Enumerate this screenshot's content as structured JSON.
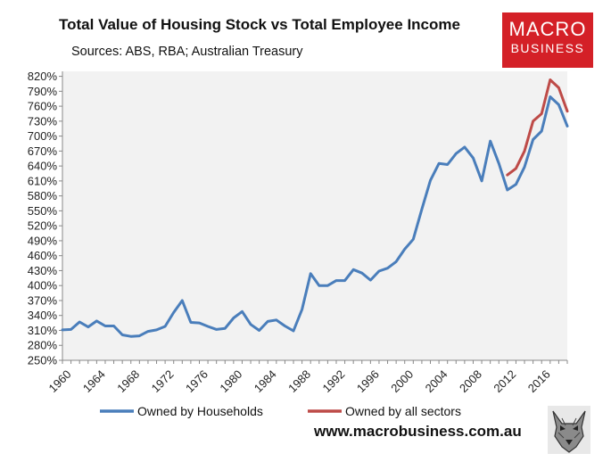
{
  "title": "Total Value of Housing Stock vs Total Employee Income",
  "subtitle": "Sources: ABS, RBA; Australian Treasury",
  "logo": {
    "line1": "MACRO",
    "line2": "BUSINESS",
    "color": "#d42027"
  },
  "website": "www.macrobusiness.com.au",
  "chart_data": {
    "type": "line",
    "title": "Total Value of Housing Stock vs Total Employee Income",
    "subtitle": "Sources: ABS, RBA; Australian Treasury",
    "xlabel": "",
    "ylabel": "",
    "xlim": [
      1960,
      2019
    ],
    "ylim": [
      250,
      830
    ],
    "y_ticks": [
      250,
      280,
      310,
      340,
      370,
      400,
      430,
      460,
      490,
      520,
      550,
      580,
      610,
      640,
      670,
      700,
      730,
      760,
      790,
      820
    ],
    "y_tick_labels": [
      "250%",
      "280%",
      "310%",
      "340%",
      "370%",
      "400%",
      "430%",
      "460%",
      "490%",
      "520%",
      "550%",
      "580%",
      "610%",
      "640%",
      "670%",
      "700%",
      "730%",
      "760%",
      "790%",
      "820%"
    ],
    "x_ticks": [
      1960,
      1964,
      1968,
      1972,
      1976,
      1980,
      1984,
      1988,
      1992,
      1996,
      2000,
      2004,
      2008,
      2012,
      2016
    ],
    "x_tick_labels": [
      "1960",
      "1964",
      "1968",
      "1972",
      "1976",
      "1980",
      "1984",
      "1988",
      "1992",
      "1996",
      "2000",
      "2004",
      "2008",
      "2012",
      "2016"
    ],
    "grid": false,
    "background": "#f2f2f2",
    "legend": "bottom",
    "series": [
      {
        "name": "Owned by Households",
        "color": "#4a7ebb",
        "x": [
          1960,
          1961,
          1962,
          1963,
          1964,
          1965,
          1966,
          1967,
          1968,
          1969,
          1970,
          1971,
          1972,
          1973,
          1974,
          1975,
          1976,
          1977,
          1978,
          1979,
          1980,
          1981,
          1982,
          1983,
          1984,
          1985,
          1986,
          1987,
          1988,
          1989,
          1990,
          1991,
          1992,
          1993,
          1994,
          1995,
          1996,
          1997,
          1998,
          1999,
          2000,
          2001,
          2002,
          2003,
          2004,
          2005,
          2006,
          2007,
          2008,
          2009,
          2010,
          2011,
          2012,
          2013,
          2014,
          2015,
          2016,
          2017,
          2018,
          2019
        ],
        "values": [
          311,
          312,
          327,
          317,
          329,
          319,
          319,
          301,
          298,
          299,
          308,
          311,
          318,
          346,
          370,
          326,
          325,
          318,
          312,
          314,
          335,
          348,
          322,
          310,
          328,
          331,
          319,
          309,
          352,
          424,
          400,
          400,
          410,
          410,
          432,
          425,
          411,
          429,
          435,
          448,
          473,
          493,
          553,
          611,
          645,
          643,
          665,
          678,
          656,
          610,
          690,
          645,
          592,
          603,
          638,
          693,
          710,
          779,
          763,
          720
        ]
      },
      {
        "name": "Owned by all sectors",
        "color": "#be4b48",
        "x": [
          2012,
          2013,
          2014,
          2015,
          2016,
          2017,
          2018,
          2019
        ],
        "values": [
          622,
          635,
          670,
          730,
          745,
          813,
          797,
          750
        ]
      }
    ]
  }
}
